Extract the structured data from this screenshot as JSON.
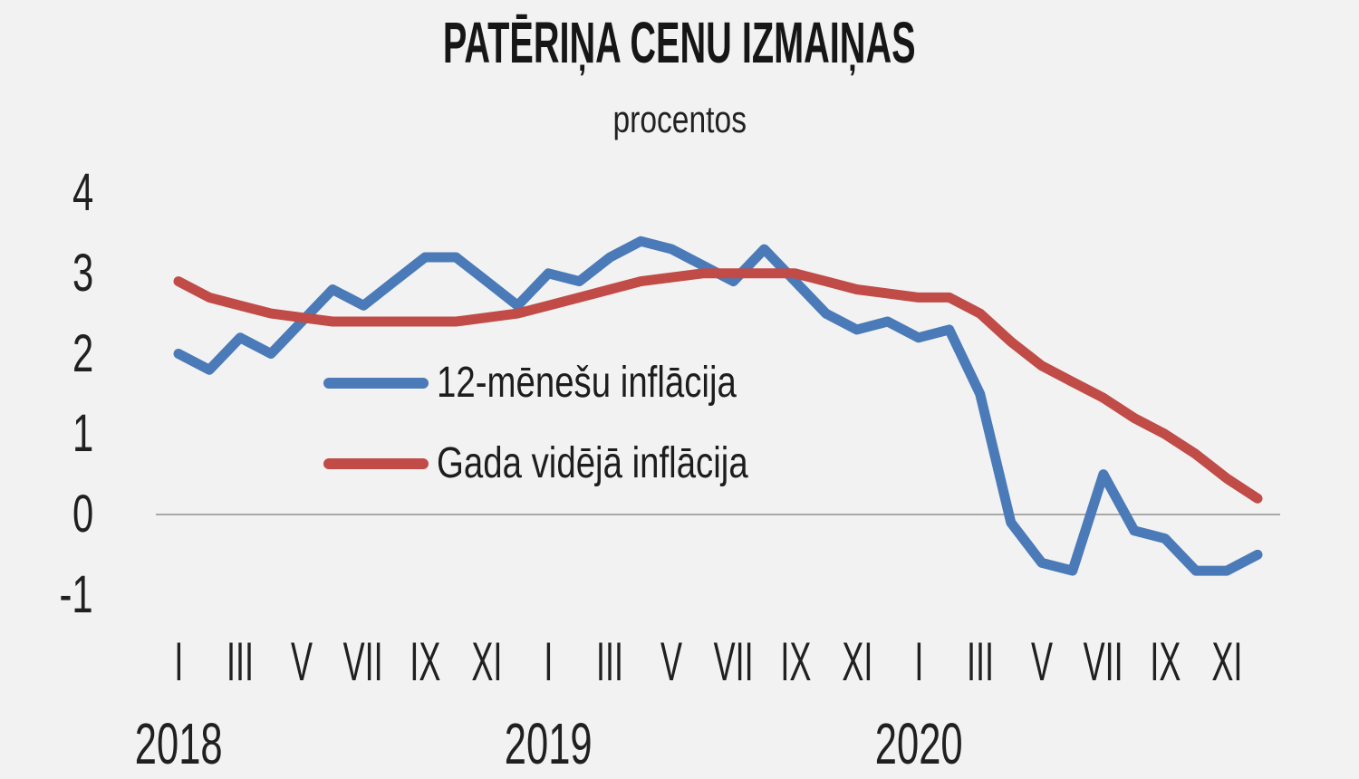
{
  "colors": {
    "background": "#f2f2f2",
    "text": "#1c1c1c",
    "gridline": "#a9a9a9",
    "series_blue": "#4a7ab8",
    "series_red": "#c04b47"
  },
  "chart_data": {
    "type": "line",
    "title": "PATĒRIŅA CENU IZMAIŅAS",
    "subtitle": "procentos",
    "categories": [
      "2018-01",
      "2018-02",
      "2018-03",
      "2018-04",
      "2018-05",
      "2018-06",
      "2018-07",
      "2018-08",
      "2018-09",
      "2018-10",
      "2018-11",
      "2018-12",
      "2019-01",
      "2019-02",
      "2019-03",
      "2019-04",
      "2019-05",
      "2019-06",
      "2019-07",
      "2019-08",
      "2019-09",
      "2019-10",
      "2019-11",
      "2019-12",
      "2020-01",
      "2020-02",
      "2020-03",
      "2020-04",
      "2020-05",
      "2020-06",
      "2020-07",
      "2020-08",
      "2020-09",
      "2020-10",
      "2020-11",
      "2020-12"
    ],
    "series": [
      {
        "name": "12-mēnešu inflācija",
        "color": "#4a7ab8",
        "values": [
          2.0,
          1.8,
          2.2,
          2.0,
          2.4,
          2.8,
          2.6,
          2.9,
          3.2,
          3.2,
          2.9,
          2.6,
          3.0,
          2.9,
          3.2,
          3.4,
          3.3,
          3.1,
          2.9,
          3.3,
          2.9,
          2.5,
          2.3,
          2.4,
          2.2,
          2.3,
          1.5,
          -0.1,
          -0.6,
          -0.7,
          0.5,
          -0.2,
          -0.3,
          -0.7,
          -0.7,
          -0.5
        ]
      },
      {
        "name": "Gada vidējā inflācija",
        "color": "#c04b47",
        "values": [
          2.9,
          2.7,
          2.6,
          2.5,
          2.45,
          2.4,
          2.4,
          2.4,
          2.4,
          2.4,
          2.45,
          2.5,
          2.6,
          2.7,
          2.8,
          2.9,
          2.95,
          3.0,
          3.0,
          3.0,
          3.0,
          2.9,
          2.8,
          2.75,
          2.7,
          2.7,
          2.5,
          2.15,
          1.85,
          1.65,
          1.45,
          1.2,
          1.0,
          0.75,
          0.45,
          0.2
        ]
      }
    ],
    "axis": {
      "ylim": [
        -1,
        4
      ],
      "y_ticks": [
        4,
        3,
        2,
        1,
        0,
        -1
      ],
      "gridlines": [
        0
      ],
      "grid": "zero-line-only",
      "legend_position": "inside-left-middle",
      "x_ticks": [
        {
          "label": "I",
          "month": 0
        },
        {
          "label": "III",
          "month": 2
        },
        {
          "label": "V",
          "month": 4
        },
        {
          "label": "VII",
          "month": 6
        },
        {
          "label": "IX",
          "month": 8
        },
        {
          "label": "XI",
          "month": 10
        },
        {
          "label": "I",
          "month": 12
        },
        {
          "label": "III",
          "month": 14
        },
        {
          "label": "V",
          "month": 16
        },
        {
          "label": "VII",
          "month": 18
        },
        {
          "label": "IX",
          "month": 20
        },
        {
          "label": "XI",
          "month": 22
        },
        {
          "label": "I",
          "month": 24
        },
        {
          "label": "III",
          "month": 26
        },
        {
          "label": "V",
          "month": 28
        },
        {
          "label": "VII",
          "month": 30
        },
        {
          "label": "IX",
          "month": 32
        },
        {
          "label": "XI",
          "month": 34
        }
      ],
      "years": [
        {
          "label": "2018",
          "month": 0
        },
        {
          "label": "2019",
          "month": 12
        },
        {
          "label": "2020",
          "month": 24
        }
      ]
    }
  }
}
